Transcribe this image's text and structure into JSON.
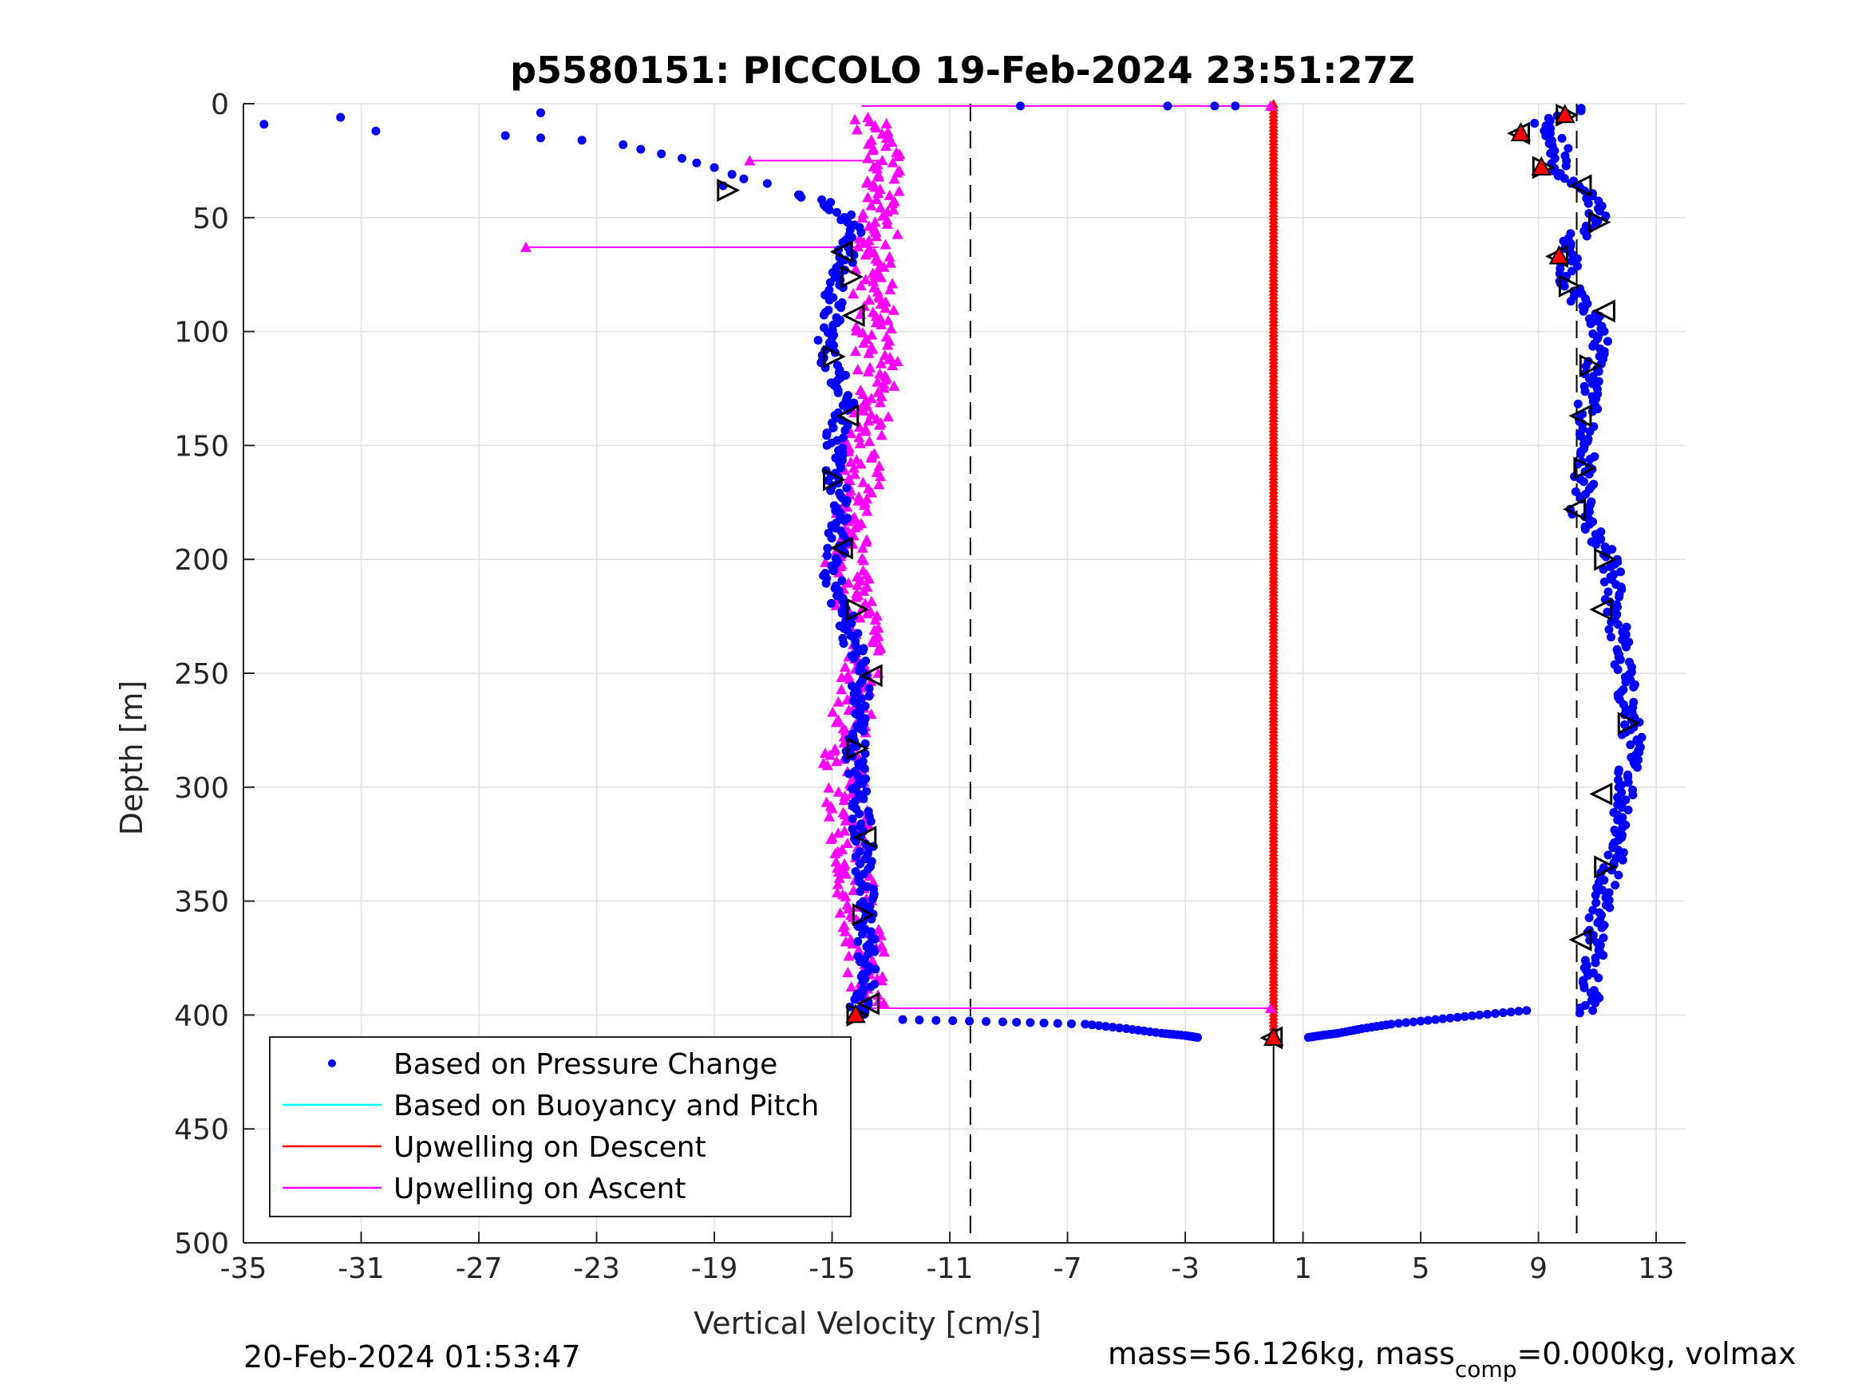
{
  "chart_data": {
    "type": "scatter",
    "title": "p5580151: PICCOLO 19-Feb-2024 23:51:27Z",
    "xlabel": "Vertical Velocity [cm/s]",
    "ylabel": "Depth [m]",
    "xlim": [
      -35,
      14
    ],
    "ylim": [
      0,
      500
    ],
    "y_reversed": true,
    "grid": true,
    "x_ticks": [
      -35,
      -31,
      -27,
      -23,
      -19,
      -15,
      -11,
      -7,
      -3,
      1,
      5,
      9,
      13
    ],
    "y_ticks": [
      0,
      50,
      100,
      150,
      200,
      250,
      300,
      350,
      400,
      450,
      500
    ],
    "reference_lines": [
      {
        "style": "dashed",
        "x": -10.3
      },
      {
        "style": "dashed",
        "x": 10.3
      },
      {
        "style": "solid",
        "x": 0,
        "from_depth": 410,
        "to_depth": 500
      }
    ],
    "legend_position": "bottom-left",
    "legend": [
      {
        "label": "Based on Pressure Change",
        "color": "#0000ff",
        "marker": "dot"
      },
      {
        "label": "Based on Buoyancy and Pitch",
        "color": "#00ffff",
        "marker": "line"
      },
      {
        "label": "Upwelling on Descent",
        "color": "#ff0000",
        "marker": "line"
      },
      {
        "label": "Upwelling on Ascent",
        "color": "#ff00ff",
        "marker": "line"
      }
    ],
    "series": [
      {
        "name": "Based on Pressure Change",
        "color": "#0000ff",
        "descent": {
          "depth": [
            2,
            4,
            6,
            10,
            14,
            20,
            28,
            36,
            46,
            60,
            80,
            100,
            120,
            140,
            160,
            180,
            200,
            220,
            240,
            260,
            280,
            300,
            320,
            340,
            360,
            380,
            395,
            400
          ],
          "velocity": [
            10.5,
            10.0,
            9.0,
            9.2,
            9.5,
            9.8,
            9.6,
            10.2,
            11.2,
            10.2,
            10.0,
            11.2,
            10.8,
            10.6,
            10.6,
            10.4,
            11.4,
            11.6,
            11.8,
            12.0,
            12.2,
            12.0,
            11.8,
            11.4,
            11.0,
            10.9,
            10.8,
            10.6
          ]
        },
        "descent_bottom_transition": {
          "depth": [
            398,
            400,
            402,
            404,
            406,
            408,
            409,
            410
          ],
          "velocity": [
            8.6,
            7.0,
            5.5,
            4.0,
            3.0,
            2.2,
            1.6,
            1.1
          ]
        },
        "ascent": {
          "depth": [
            400,
            390,
            370,
            350,
            330,
            310,
            290,
            270,
            250,
            230,
            210,
            190,
            170,
            150,
            130,
            110,
            90,
            75,
            62,
            54,
            46,
            40
          ],
          "velocity": [
            -14.2,
            -13.9,
            -13.8,
            -13.9,
            -13.9,
            -14.0,
            -14.2,
            -14.1,
            -14.0,
            -14.4,
            -15.0,
            -14.8,
            -14.8,
            -15.0,
            -14.4,
            -15.2,
            -15.0,
            -14.8,
            -14.4,
            -14.3,
            -14.8,
            -16.0
          ]
        },
        "ascent_bottom_transition": {
          "depth": [
            402,
            403,
            404,
            406,
            408,
            409,
            410
          ],
          "velocity": [
            -12.6,
            -9.2,
            -6.4,
            -5.0,
            -3.8,
            -3.0,
            -2.5
          ]
        },
        "surface_points": {
          "velocity": [
            -34.3,
            -31.7,
            -30.5,
            -26.1,
            -24.9,
            -24.9,
            -23.5,
            -22.1,
            -21.5,
            -20.8,
            -20.1,
            -19.6,
            -19.0,
            -18.7,
            -18.4,
            -18.0,
            -17.2,
            -16.1,
            -8.6,
            -3.6,
            -2.0,
            -1.3
          ],
          "depth": [
            9,
            6,
            12,
            14,
            4,
            15,
            16,
            18,
            20,
            22,
            24,
            26,
            28,
            36,
            31,
            33,
            35,
            40,
            1,
            1,
            1,
            1
          ]
        }
      },
      {
        "name": "Upwelling on Descent",
        "color": "#ff0000",
        "depth": [
          0,
          410
        ],
        "velocity": [
          0,
          0
        ]
      },
      {
        "name": "Upwelling on Ascent",
        "color": "#ff00ff",
        "depth": [
          6,
          20,
          40,
          60,
          80,
          100,
          120,
          140,
          160,
          180,
          200,
          220,
          240,
          260,
          280,
          300,
          320,
          340,
          360,
          380,
          397
        ],
        "velocity": [
          -14.0,
          -13.2,
          -13.4,
          -13.4,
          -13.6,
          -13.6,
          -13.4,
          -13.8,
          -14.0,
          -14.2,
          -14.6,
          -14.2,
          -13.8,
          -14.2,
          -14.6,
          -14.6,
          -14.4,
          -14.2,
          -14.0,
          -13.8,
          -13.9
        ],
        "outliers": [
          {
            "depth": 25,
            "velocity": -17.8
          },
          {
            "depth": 63,
            "velocity": -25.4
          },
          {
            "depth": 397,
            "velocity": -0.1
          },
          {
            "depth": 1,
            "velocity": -0.1
          }
        ]
      },
      {
        "name": "Sample Markers",
        "color": "#000000",
        "depth": [
          5,
          13,
          28,
          36,
          52,
          67,
          80,
          91,
          115,
          137,
          160,
          178,
          200,
          222,
          272,
          303,
          335,
          367,
          38,
          65,
          76,
          93,
          111,
          137,
          165,
          195,
          222,
          251,
          283,
          322,
          356,
          395,
          400,
          410
        ],
        "velocity": [
          9.9,
          8.4,
          9.1,
          10.5,
          11.0,
          9.7,
          10.0,
          11.3,
          10.7,
          10.5,
          10.5,
          10.3,
          11.2,
          11.2,
          12.0,
          11.2,
          11.2,
          10.5,
          -18.6,
          -14.6,
          -14.4,
          -14.2,
          -15.0,
          -14.4,
          -15.0,
          -14.6,
          -14.2,
          -13.6,
          -14.2,
          -13.8,
          -14.0,
          -13.7,
          -14.2,
          0
        ]
      }
    ]
  },
  "footer": {
    "timestamp": "20-Feb-2024 01:53:47",
    "mass_text_1": "mass=56.126kg, mass",
    "mass_sub": "comp",
    "mass_text_2": "=0.000kg, volmax"
  }
}
